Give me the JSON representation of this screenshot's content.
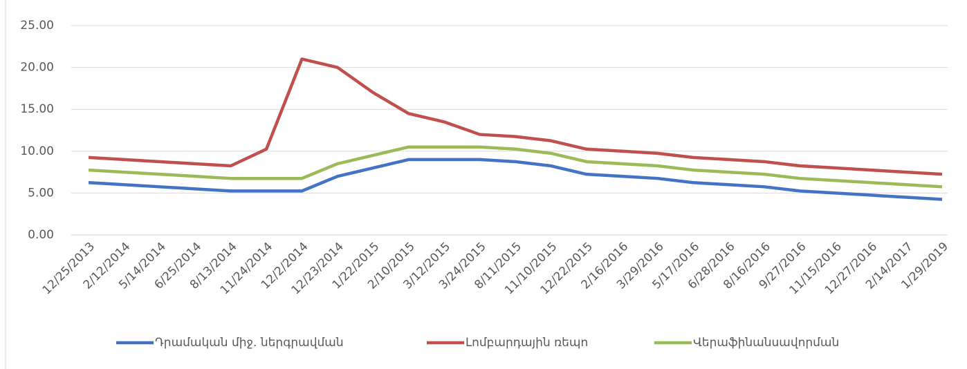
{
  "chart_data": {
    "type": "line",
    "categories": [
      "12/25/2013",
      "2/12/2014",
      "5/14/2014",
      "6/25/2014",
      "8/13/2014",
      "11/24/2014",
      "12/2/2014",
      "12/23/2014",
      "1/22/2015",
      "2/10/2015",
      "3/12/2015",
      "3/24/2015",
      "8/11/2015",
      "11/10/2015",
      "12/22/2015",
      "2/16/2016",
      "3/29/2016",
      "5/17/2016",
      "6/28/2016",
      "8/16/2016",
      "9/27/2016",
      "11/15/2016",
      "12/27/2016",
      "2/14/2017",
      "1/29/2019"
    ],
    "series": [
      {
        "name": "Դրամական միջ. ներգրավման",
        "color": "#4472c4",
        "values": [
          6.25,
          6.0,
          5.75,
          5.5,
          5.25,
          5.25,
          5.25,
          7.0,
          8.0,
          9.0,
          9.0,
          9.0,
          8.75,
          8.25,
          7.25,
          7.0,
          6.75,
          6.25,
          6.0,
          5.75,
          5.25,
          5.0,
          4.75,
          4.5,
          4.25
        ]
      },
      {
        "name": "Լոմբարդային ռեպո",
        "color": "#c0504d",
        "values": [
          9.25,
          9.0,
          8.75,
          8.5,
          8.25,
          10.25,
          21,
          20,
          17,
          14.5,
          13.5,
          12,
          11.75,
          11.25,
          10.25,
          10,
          9.75,
          9.25,
          9.0,
          8.75,
          8.25,
          8.0,
          7.75,
          7.5,
          7.25
        ]
      },
      {
        "name": "Վերաֆինանսավորման",
        "color": "#9bbb59",
        "values": [
          7.75,
          7.5,
          7.25,
          7.0,
          6.75,
          6.75,
          6.75,
          8.5,
          9.5,
          10.5,
          10.5,
          10.5,
          10.25,
          9.75,
          8.75,
          8.5,
          8.25,
          7.75,
          7.5,
          7.25,
          6.75,
          6.5,
          6.25,
          6.0,
          5.75
        ]
      }
    ],
    "ylim": [
      0,
      25
    ],
    "yticks": [
      {
        "value": 0,
        "label": "0.00"
      },
      {
        "value": 5,
        "label": "5.00"
      },
      {
        "value": 10,
        "label": "10.00"
      },
      {
        "value": 15,
        "label": "15.00"
      },
      {
        "value": 20,
        "label": "20.00"
      },
      {
        "value": 25,
        "label": "25.00"
      }
    ],
    "grid": true,
    "legend": "bottom"
  }
}
